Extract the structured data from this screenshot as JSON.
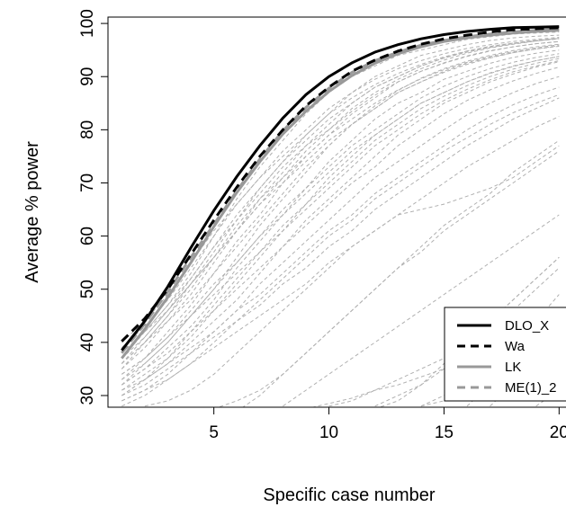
{
  "chart_data": {
    "type": "line",
    "title": "",
    "xlabel": "Specific case number",
    "ylabel": "Average % power",
    "xlim": [
      0.4,
      20.3
    ],
    "ylim": [
      27.8,
      101.2
    ],
    "xticks": [
      5,
      10,
      15,
      20
    ],
    "yticks": [
      30,
      40,
      50,
      60,
      70,
      80,
      90,
      100
    ],
    "grid": false,
    "legend_position": "bottom-right",
    "x": [
      1,
      2,
      3,
      4,
      5,
      6,
      7,
      8,
      9,
      10,
      11,
      12,
      13,
      14,
      15,
      16,
      17,
      18,
      19,
      20
    ],
    "series": [
      {
        "name": "DLO_X",
        "color": "#000000",
        "style": "solid",
        "width": 3,
        "values": [
          38.5,
          44.0,
          50.5,
          57.8,
          64.8,
          71.2,
          77.0,
          82.2,
          86.6,
          90.0,
          92.6,
          94.6,
          96.0,
          97.1,
          97.9,
          98.5,
          98.9,
          99.2,
          99.3,
          99.4
        ]
      },
      {
        "name": "Wa",
        "color": "#000000",
        "style": "dashed",
        "width": 3,
        "values": [
          40.2,
          44.5,
          50.0,
          56.5,
          63.0,
          69.2,
          75.0,
          80.0,
          84.5,
          88.0,
          91.0,
          93.1,
          94.8,
          96.1,
          97.1,
          97.8,
          98.4,
          98.8,
          99.0,
          99.2
        ]
      },
      {
        "name": "LK",
        "color": "#999999",
        "style": "solid",
        "width": 3,
        "values": [
          37.0,
          42.5,
          48.5,
          55.0,
          61.8,
          68.2,
          74.0,
          79.2,
          83.5,
          87.2,
          90.2,
          92.5,
          94.3,
          95.6,
          96.6,
          97.3,
          97.8,
          98.2,
          98.5,
          98.7
        ]
      },
      {
        "name": "ME(1)_2",
        "color": "#999999",
        "style": "dashed",
        "width": 3,
        "values": [
          38.0,
          43.5,
          49.5,
          56.0,
          62.2,
          68.5,
          74.5,
          79.8,
          84.2,
          87.8,
          90.8,
          93.0,
          94.6,
          95.9,
          96.8,
          97.5,
          98.0,
          98.4,
          98.7,
          98.9
        ]
      }
    ],
    "background_series": [
      {
        "values": [
          37,
          42,
          47,
          53,
          60,
          67,
          73,
          78,
          83,
          87,
          90,
          92,
          94,
          95,
          96,
          97,
          97.5,
          98,
          98.2,
          98.4
        ]
      },
      {
        "values": [
          36,
          40,
          45,
          51,
          57,
          63,
          69,
          74,
          79,
          83,
          87,
          90,
          92,
          94,
          95,
          96,
          96.8,
          97.3,
          97.6,
          97.8
        ]
      },
      {
        "values": [
          35,
          39,
          44,
          49,
          55,
          61,
          67,
          72,
          77,
          81,
          85,
          88,
          90,
          92,
          93.5,
          94.8,
          95.7,
          96.3,
          96.8,
          97.2
        ]
      },
      {
        "values": [
          34,
          37,
          42,
          47,
          53,
          59,
          64,
          70,
          75,
          79,
          83,
          86,
          89,
          91,
          92.5,
          93.8,
          94.8,
          95.6,
          96.2,
          96.6
        ]
      },
      {
        "values": [
          33,
          36,
          40,
          45,
          50,
          56,
          62,
          67,
          72,
          77,
          81,
          84,
          87,
          89,
          91,
          92.5,
          93.6,
          94.5,
          95.2,
          95.7
        ]
      },
      {
        "values": [
          32,
          35,
          39,
          43,
          48,
          54,
          59,
          64,
          69,
          74,
          78,
          82,
          85,
          87,
          89.5,
          91,
          92.5,
          93.6,
          94.4,
          95
        ]
      },
      {
        "values": [
          31,
          34,
          37,
          41,
          46,
          51,
          56,
          61,
          66,
          71,
          75,
          79,
          82,
          85,
          87,
          89,
          90.7,
          92,
          93,
          93.8
        ]
      },
      {
        "values": [
          30,
          33,
          36,
          40,
          44,
          48,
          53,
          58,
          63,
          67,
          71,
          75,
          79,
          82,
          85,
          87,
          89,
          90.5,
          91.8,
          92.8
        ]
      },
      {
        "values": [
          38,
          42,
          47,
          52,
          58,
          64,
          69,
          74,
          78,
          82,
          85,
          88,
          90,
          92,
          93.5,
          94.6,
          95.5,
          96.2,
          96.7,
          97.1
        ]
      },
      {
        "values": [
          39,
          43,
          48,
          54,
          60,
          66,
          71,
          76,
          80,
          84,
          87,
          89.5,
          91.5,
          93,
          94.3,
          95.3,
          96,
          96.6,
          97,
          97.4
        ]
      },
      {
        "values": [
          36,
          41,
          46,
          52,
          58,
          63,
          68,
          73,
          77,
          80,
          83.5,
          86.5,
          89,
          91,
          92.6,
          93.9,
          94.9,
          95.6,
          96.2,
          96.6
        ]
      },
      {
        "values": [
          35,
          40,
          45,
          50,
          56,
          61,
          66,
          70,
          74,
          78,
          81,
          84,
          87,
          89,
          90.8,
          92.3,
          93.5,
          94.5,
          95.2,
          95.8
        ]
      },
      {
        "values": [
          33,
          37,
          41,
          46,
          51,
          55,
          60,
          64,
          68,
          72,
          76,
          79,
          82,
          85,
          87,
          89,
          90.6,
          91.9,
          93,
          93.8
        ]
      },
      {
        "values": [
          32,
          35,
          38,
          42,
          46,
          50,
          54,
          58,
          62,
          66,
          70,
          73,
          77,
          80,
          83,
          85.5,
          87.5,
          89.2,
          90.6,
          91.8
        ]
      },
      {
        "values": [
          31,
          33,
          36,
          39,
          42,
          46,
          49,
          53,
          57,
          61,
          64,
          68,
          71,
          74,
          77,
          80,
          82.5,
          84.7,
          86.5,
          88
        ]
      },
      {
        "values": [
          30,
          32,
          35,
          38,
          41,
          44,
          47,
          51,
          54,
          58,
          61,
          65,
          68,
          71,
          74,
          77,
          79.5,
          82,
          84,
          86
        ]
      },
      {
        "values": [
          29,
          31,
          33,
          36,
          39,
          42,
          45,
          48,
          51,
          55,
          58,
          61,
          64,
          67,
          70,
          73,
          75.5,
          78,
          80.5,
          82.5
        ]
      },
      {
        "values": [
          34,
          37,
          41,
          45,
          49,
          53,
          57,
          61,
          65,
          69,
          73,
          77,
          80,
          83,
          85.5,
          87.6,
          89.4,
          90.9,
          92,
          93
        ]
      },
      {
        "values": [
          37,
          41,
          46,
          51,
          56,
          62,
          67,
          71,
          75,
          79,
          82,
          85,
          87.5,
          89.6,
          91.3,
          92.7,
          93.8,
          94.7,
          95.4,
          96
        ]
      },
      {
        "values": [
          38,
          42,
          46,
          51,
          56,
          61,
          66,
          71,
          76,
          80,
          84,
          87,
          89.5,
          91.5,
          93.1,
          94.4,
          95.4,
          96.1,
          96.7,
          97.2
        ]
      },
      {
        "values": [
          40,
          44,
          49,
          55,
          61,
          66,
          71,
          75,
          79,
          83,
          86,
          88.5,
          90.6,
          92.3,
          93.7,
          94.8,
          95.6,
          96.3,
          96.8,
          97.2
        ]
      },
      {
        "values": [
          36,
          40,
          44,
          48,
          53,
          58,
          63,
          68,
          73,
          77,
          81,
          84.5,
          87.4,
          89.7,
          91.5,
          92.9,
          94,
          94.9,
          95.6,
          96.1
        ]
      },
      {
        "values": [
          32,
          36,
          40,
          45,
          50,
          55,
          60,
          65,
          69,
          73,
          77,
          80,
          83,
          86,
          88.2,
          90,
          91.5,
          92.7,
          93.6,
          94.3
        ]
      },
      {
        "values": [
          30,
          33,
          37,
          42,
          47,
          52,
          57,
          62,
          66,
          70,
          74,
          78,
          81,
          84,
          86.3,
          88.3,
          90,
          91.4,
          92.5,
          93.4
        ]
      },
      {
        "values": [
          29,
          31,
          34,
          38,
          42,
          46,
          51,
          55,
          59,
          63,
          67,
          71,
          74,
          77,
          80,
          82.8,
          85,
          87,
          88.7,
          90
        ]
      },
      {
        "values": [
          28,
          30,
          33,
          36,
          40,
          44,
          48,
          52,
          56,
          60,
          63,
          67,
          70,
          73,
          76,
          78.5,
          81,
          83.2,
          85,
          86.6
        ]
      },
      {
        "values": [
          null,
          28,
          29,
          31,
          34,
          38,
          42,
          46,
          50,
          54,
          58,
          61,
          64,
          65,
          66,
          67.5,
          69,
          71,
          74,
          77
        ]
      },
      {
        "values": [
          null,
          null,
          null,
          null,
          null,
          27,
          30,
          34,
          38,
          42,
          46,
          50,
          54,
          57,
          61,
          64,
          67,
          70,
          73,
          76
        ]
      },
      {
        "values": [
          null,
          null,
          null,
          null,
          27.5,
          29,
          31,
          34,
          38,
          42,
          46,
          50,
          54,
          58,
          62,
          65,
          68,
          72,
          75,
          78
        ]
      },
      {
        "values": [
          null,
          null,
          null,
          null,
          null,
          null,
          null,
          28,
          31,
          34,
          37,
          40,
          43,
          46,
          49,
          52,
          55,
          58,
          61,
          64
        ]
      },
      {
        "values": [
          null,
          null,
          null,
          null,
          null,
          null,
          null,
          null,
          null,
          28,
          29,
          31,
          33,
          35,
          37,
          40,
          44,
          48,
          52,
          56
        ]
      },
      {
        "values": [
          null,
          null,
          null,
          null,
          null,
          null,
          null,
          null,
          null,
          null,
          null,
          28,
          30,
          32,
          35,
          38,
          42,
          46,
          50,
          54
        ]
      },
      {
        "values": [
          null,
          null,
          null,
          null,
          null,
          null,
          null,
          null,
          null,
          null,
          null,
          null,
          null,
          null,
          null,
          28,
          32,
          37,
          42,
          46
        ]
      },
      {
        "values": [
          null,
          null,
          null,
          null,
          null,
          null,
          null,
          null,
          null,
          null,
          null,
          null,
          null,
          28,
          29,
          30,
          31,
          33,
          35,
          37
        ]
      },
      {
        "values": [
          null,
          null,
          null,
          null,
          null,
          null,
          null,
          null,
          27.5,
          28.5,
          29.5,
          31,
          32,
          33.5,
          35,
          36,
          37,
          38,
          39,
          40
        ]
      },
      {
        "values": [
          null,
          null,
          null,
          null,
          null,
          null,
          null,
          null,
          null,
          null,
          null,
          null,
          null,
          null,
          null,
          null,
          28,
          32,
          37,
          42
        ]
      },
      {
        "values": [
          null,
          null,
          null,
          null,
          null,
          null,
          null,
          null,
          null,
          null,
          null,
          null,
          null,
          null,
          null,
          null,
          null,
          null,
          28,
          31
        ]
      },
      {
        "values": [
          null,
          null,
          null,
          null,
          null,
          null,
          null,
          null,
          null,
          null,
          null,
          27.5,
          29,
          32,
          36,
          40,
          44,
          48,
          52,
          56
        ]
      },
      {
        "values": [
          null,
          null,
          null,
          null,
          null,
          null,
          null,
          null,
          null,
          null,
          null,
          null,
          null,
          28,
          30,
          33,
          36,
          40,
          44,
          49
        ]
      }
    ]
  }
}
